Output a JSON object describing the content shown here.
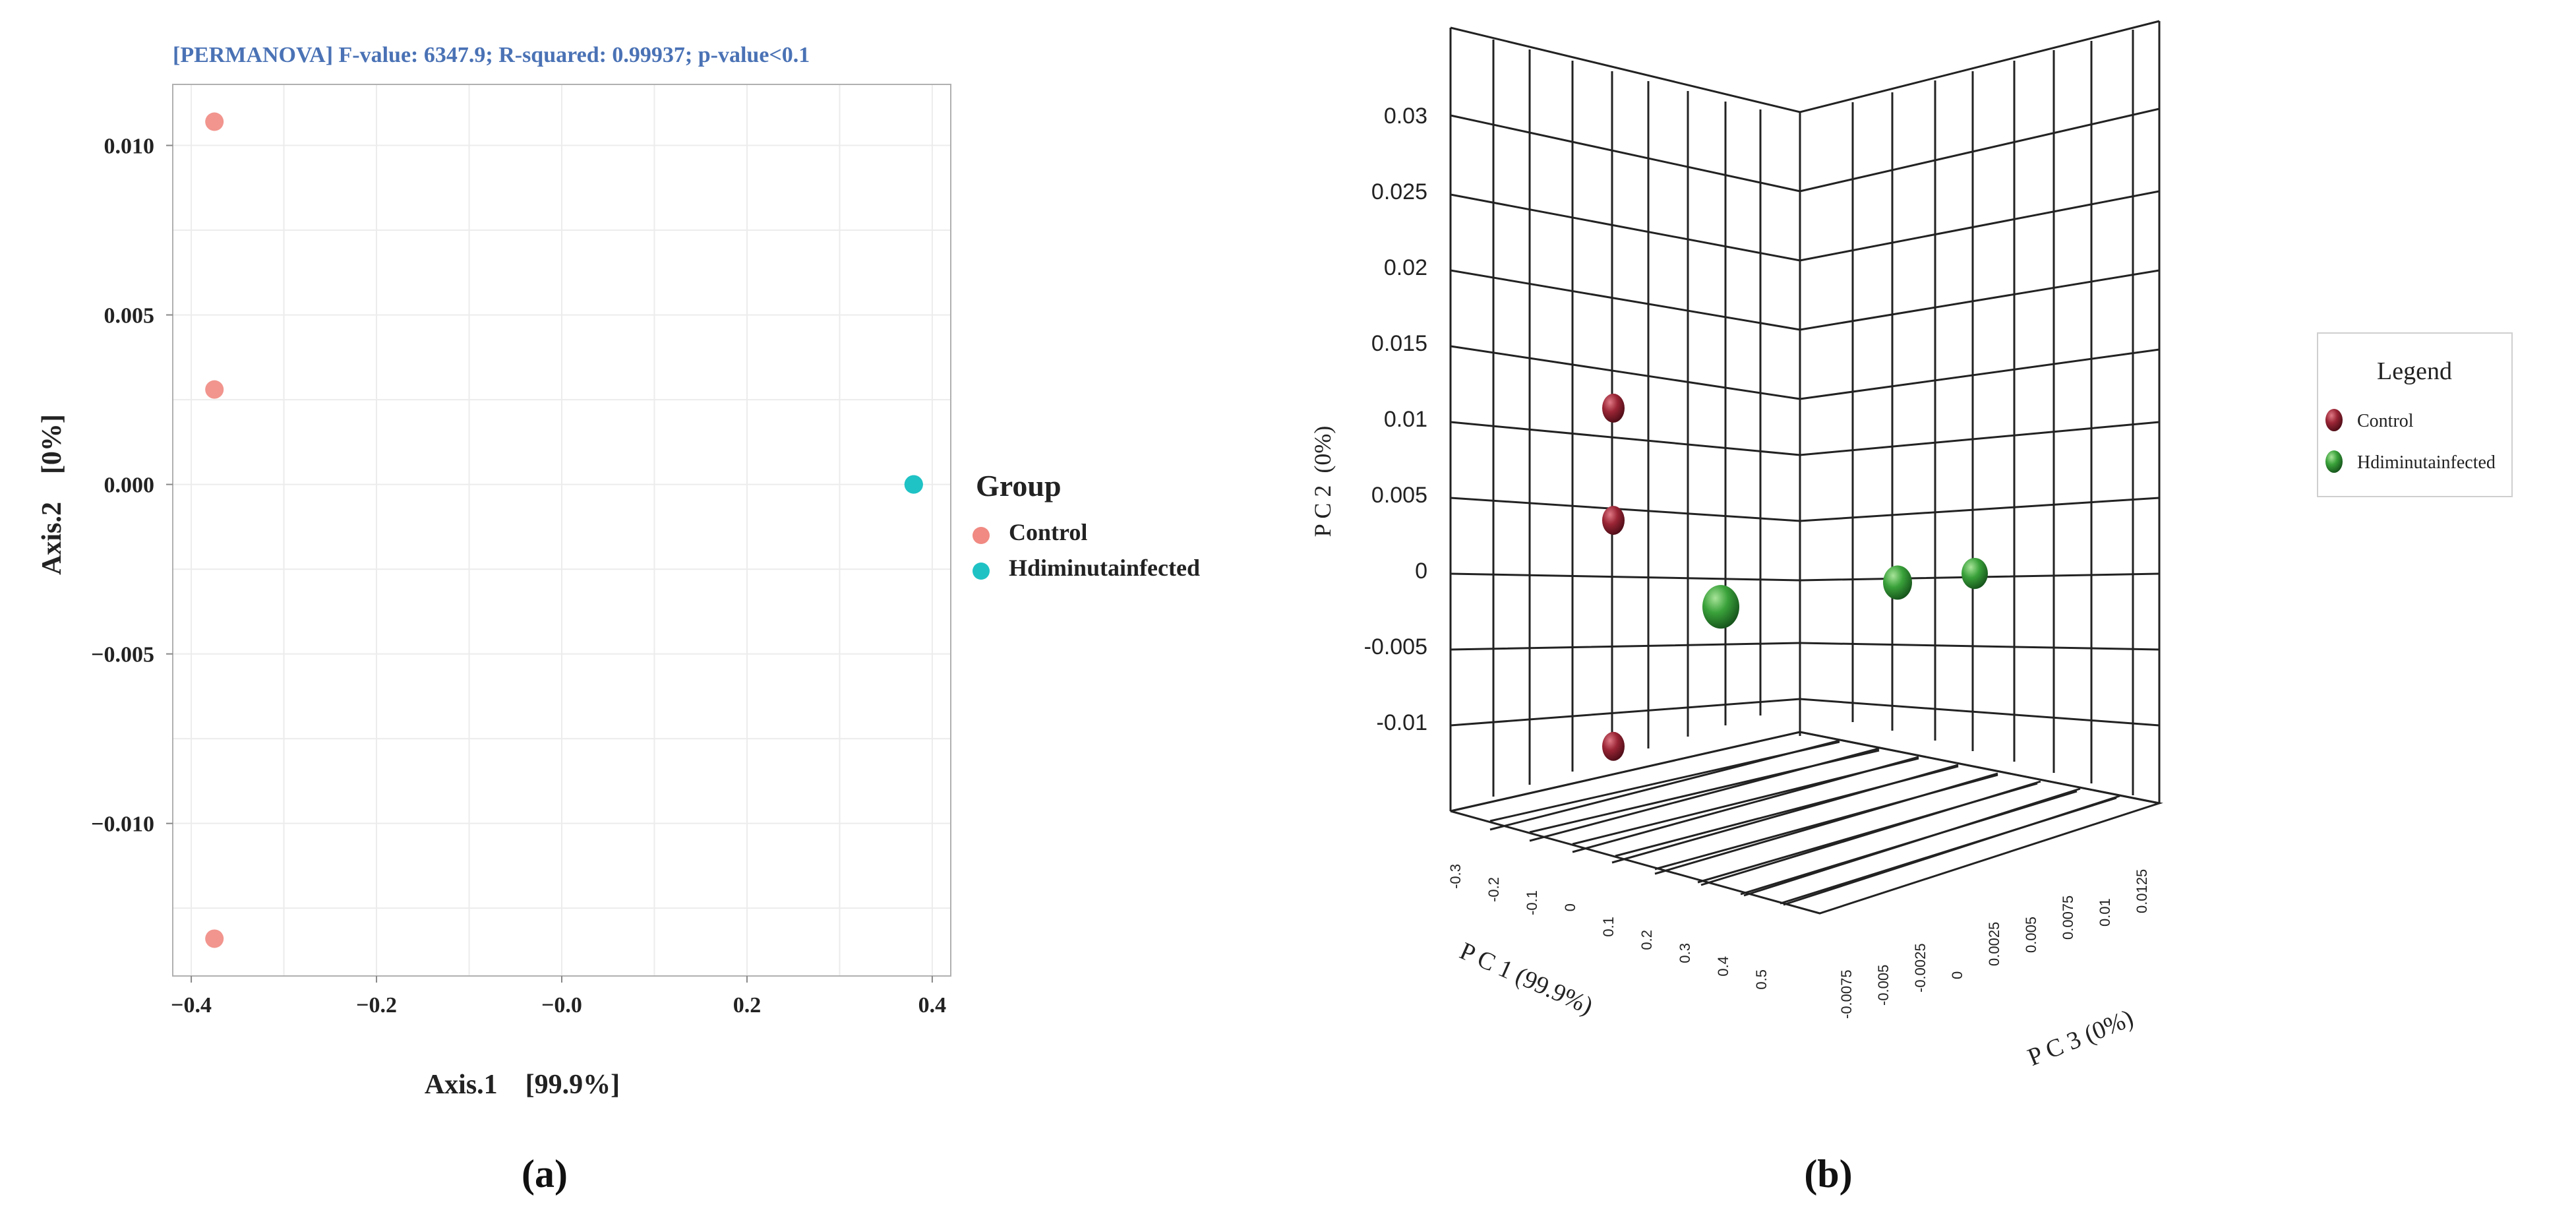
{
  "colors": {
    "title_blue": "#4a72b5",
    "control_2d": "#f08a82",
    "infected_2d": "#1fc2c4",
    "control_3d": "#8a1e2e",
    "infected_3d": "#2e9a2e",
    "grid": "#ececec",
    "frame": "#9a9a9a"
  },
  "chart_data": [
    {
      "type": "scatter",
      "panel_label": "(a)",
      "title": "[PERMANOVA]  F-value: 6347.9; R-squared: 0.99937; p-value<0.1",
      "xlabel": "Axis.1    [99.9%]",
      "ylabel": "Axis.2    [0%]",
      "xlim": [
        -0.42,
        0.42
      ],
      "ylim": [
        -0.0145,
        0.0118
      ],
      "xticks": [
        -0.4,
        -0.2,
        0.0,
        0.2,
        0.4
      ],
      "xtick_labels": [
        "−0.4",
        "−0.2",
        "−0.0",
        "0.2",
        "0.4"
      ],
      "yticks": [
        0.01,
        0.005,
        0.0,
        -0.005,
        -0.01
      ],
      "ytick_labels": [
        "0.010",
        "0.005",
        "0.000",
        "−0.005",
        "−0.010"
      ],
      "grid": true,
      "legend": {
        "title": "Group",
        "position": "right",
        "entries": [
          "Control",
          "Hdiminutainfected"
        ]
      },
      "series": [
        {
          "name": "Control",
          "x": [
            -0.375,
            -0.375,
            -0.375
          ],
          "y": [
            0.0107,
            0.0028,
            -0.0134
          ]
        },
        {
          "name": "Hdiminutainfected",
          "x": [
            0.38,
            0.38,
            0.38
          ],
          "y": [
            0.0,
            0.0,
            0.0
          ]
        }
      ]
    },
    {
      "type": "scatter",
      "subtype": "3d",
      "panel_label": "(b)",
      "xlabel": "P C 1 (99.9%)",
      "ylabel": "P C 2  (0%)",
      "zlabel": "P C 3 (0%)",
      "yticks": [
        0.03,
        0.025,
        0.02,
        0.015,
        0.01,
        0.005,
        0,
        -0.005,
        -0.01
      ],
      "ytick_labels": [
        "0.03",
        "0.025",
        "0.02",
        "0.015",
        "0.01",
        "0.005",
        "0",
        "-0.005",
        "-0.01"
      ],
      "xtick_labels": [
        "-0.3",
        "-0.2",
        "-0.1",
        "0",
        "0.1",
        "0.2",
        "0.3",
        "0.4",
        "0.5"
      ],
      "ztick_labels": [
        "-0.0075",
        "-0.005",
        "-0.0025",
        "0",
        "0.0025",
        "0.005",
        "0.0075",
        "0.01",
        "0.0125"
      ],
      "legend": {
        "title": "Legend",
        "position": "right",
        "entries": [
          "Control",
          "Hdiminutainfected"
        ]
      },
      "series": [
        {
          "name": "Control",
          "y": [
            0.0107,
            0.0033,
            -0.0116
          ]
        },
        {
          "name": "Hdiminutainfected",
          "y": [
            -0.0024,
            -0.0008,
            -0.0002
          ]
        }
      ]
    }
  ]
}
